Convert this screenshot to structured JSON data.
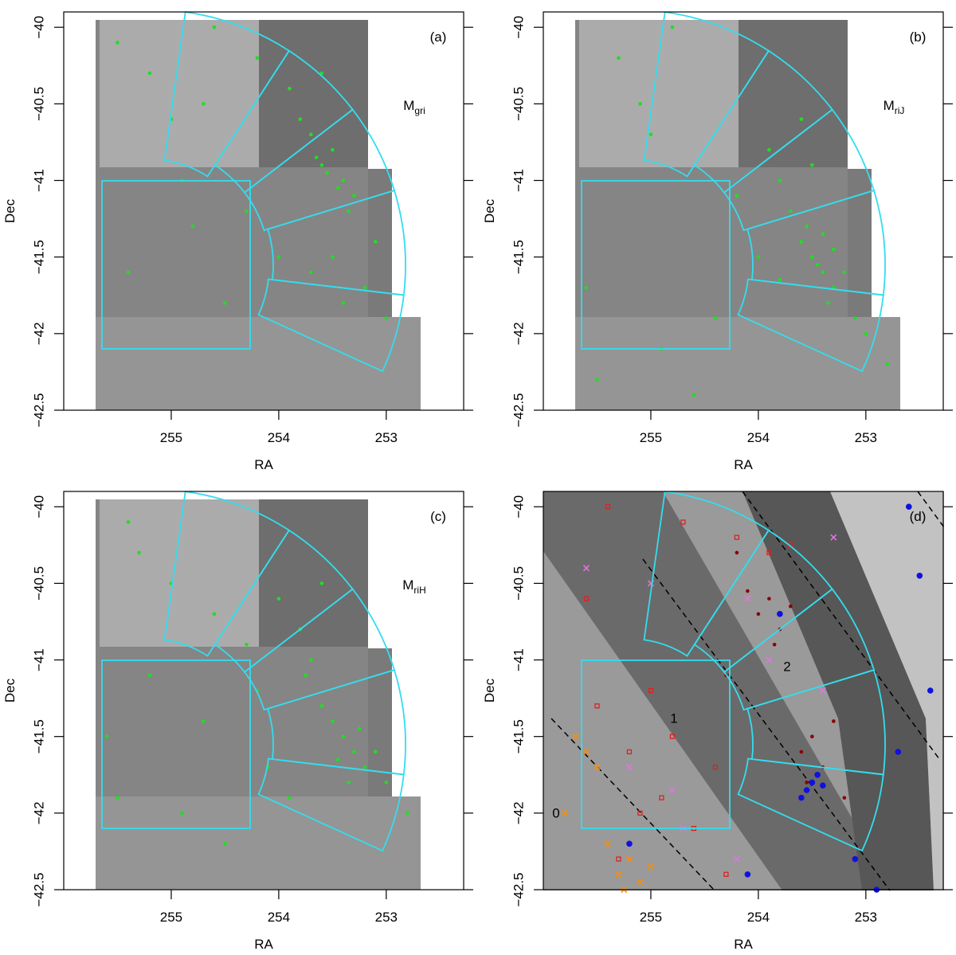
{
  "chart_data": [
    {
      "type": "scatter",
      "panel_label": "(a)",
      "annotation": {
        "text": "M",
        "subscript": "gri"
      },
      "x_label": "RA",
      "y_label": "Dec",
      "xlim": [
        256.0,
        252.28
      ],
      "ylim": [
        -42.5,
        -39.9
      ],
      "xticks": [
        255,
        254,
        253
      ],
      "yticks": [
        {
          "value": -40,
          "label": "−40"
        },
        {
          "value": -40.5,
          "label": "−40.5"
        },
        {
          "value": -41,
          "label": "−41"
        },
        {
          "value": -41.5,
          "label": "−41.5"
        },
        {
          "value": -42,
          "label": "−42"
        },
        {
          "value": -42.5,
          "label": "−42.5"
        }
      ],
      "series": [
        {
          "color": "#22dd22",
          "marker": "dot",
          "x": [
            253.6,
            253.4,
            253.7,
            253.5,
            253.3,
            253.8,
            253.55,
            253.45,
            253.65,
            253.35,
            253.5,
            253.2,
            253.9,
            253.6,
            254.2,
            254.6,
            255.2,
            255.0,
            254.8,
            255.4,
            254.5,
            254.0,
            253.1,
            253.0,
            254.3,
            255.5,
            254.9,
            253.7,
            253.4,
            254.7
          ],
          "values": [
            -40.9,
            -41.0,
            -40.7,
            -40.8,
            -41.1,
            -40.6,
            -40.95,
            -41.05,
            -40.85,
            -41.2,
            -41.5,
            -41.7,
            -40.4,
            -40.3,
            -40.2,
            -40.0,
            -40.3,
            -40.6,
            -41.3,
            -41.6,
            -41.8,
            -41.5,
            -41.4,
            -41.9,
            -41.2,
            -40.1,
            -41.0,
            -41.6,
            -41.8,
            -40.5
          ]
        }
      ]
    },
    {
      "type": "scatter",
      "panel_label": "(b)",
      "annotation": {
        "text": "M",
        "subscript": "riJ"
      },
      "x_label": "RA",
      "y_label": "Dec",
      "xlim": [
        256.0,
        252.28
      ],
      "ylim": [
        -42.5,
        -39.9
      ],
      "xticks": [
        255,
        254,
        253
      ],
      "yticks": [
        {
          "value": -40,
          "label": "−40"
        },
        {
          "value": -40.5,
          "label": "−40.5"
        },
        {
          "value": -41,
          "label": "−41"
        },
        {
          "value": -41.5,
          "label": "−41.5"
        },
        {
          "value": -42,
          "label": "−42"
        },
        {
          "value": -42.5,
          "label": "−42.5"
        }
      ],
      "series": [
        {
          "color": "#22dd22",
          "marker": "dot",
          "x": [
            253.5,
            253.4,
            253.6,
            253.3,
            253.55,
            253.45,
            253.2,
            253.7,
            253.35,
            253.1,
            253.8,
            253.9,
            254.0,
            255.3,
            255.1,
            254.8,
            255.5,
            254.4,
            254.6,
            253.0,
            252.8,
            253.6,
            254.2,
            255.6,
            253.5,
            253.3,
            254.9,
            253.8,
            253.4,
            255.0
          ],
          "values": [
            -41.5,
            -41.6,
            -41.4,
            -41.7,
            -41.3,
            -41.55,
            -41.6,
            -41.2,
            -41.8,
            -41.9,
            -41.0,
            -40.8,
            -41.5,
            -40.2,
            -40.5,
            -40.0,
            -42.3,
            -41.9,
            -42.4,
            -42.0,
            -42.2,
            -40.6,
            -41.1,
            -41.7,
            -40.9,
            -41.45,
            -42.1,
            -41.65,
            -41.35,
            -40.7
          ]
        }
      ]
    },
    {
      "type": "scatter",
      "panel_label": "(c)",
      "annotation": {
        "text": "M",
        "subscript": "riH"
      },
      "x_label": "RA",
      "y_label": "Dec",
      "xlim": [
        256.0,
        252.28
      ],
      "ylim": [
        -42.5,
        -39.9
      ],
      "xticks": [
        255,
        254,
        253
      ],
      "yticks": [
        {
          "value": -40,
          "label": "−40"
        },
        {
          "value": -40.5,
          "label": "−40.5"
        },
        {
          "value": -41,
          "label": "−41"
        },
        {
          "value": -41.5,
          "label": "−41.5"
        },
        {
          "value": -42,
          "label": "−42"
        },
        {
          "value": -42.5,
          "label": "−42.5"
        }
      ],
      "series": [
        {
          "color": "#22dd22",
          "marker": "dot",
          "x": [
            253.3,
            253.4,
            253.2,
            253.5,
            253.35,
            253.6,
            253.1,
            253.7,
            253.8,
            254.0,
            254.2,
            255.3,
            255.0,
            254.7,
            255.5,
            254.5,
            253.9,
            253.0,
            252.8,
            254.3,
            255.2,
            253.6,
            253.45,
            254.9,
            255.4,
            253.25,
            254.1,
            253.75,
            255.6,
            254.6
          ],
          "values": [
            -41.6,
            -41.5,
            -41.7,
            -41.4,
            -41.8,
            -41.3,
            -41.6,
            -41.0,
            -40.8,
            -40.6,
            -41.2,
            -40.3,
            -40.5,
            -41.4,
            -41.9,
            -42.2,
            -41.9,
            -41.8,
            -42.0,
            -40.9,
            -41.1,
            -40.5,
            -41.65,
            -42.0,
            -40.1,
            -41.45,
            -41.7,
            -41.1,
            -41.5,
            -40.7
          ]
        }
      ]
    },
    {
      "type": "scatter",
      "panel_label": "(d)",
      "x_label": "RA",
      "y_label": "Dec",
      "line_labels": [
        0,
        1,
        2
      ],
      "xlim": [
        256.0,
        252.28
      ],
      "ylim": [
        -42.5,
        -39.9
      ],
      "xticks": [
        255,
        254,
        253
      ],
      "yticks": [
        {
          "value": -40,
          "label": "−40"
        },
        {
          "value": -40.5,
          "label": "−40.5"
        },
        {
          "value": -41,
          "label": "−41"
        },
        {
          "value": -41.5,
          "label": "−41.5"
        },
        {
          "value": -42,
          "label": "−42"
        },
        {
          "value": -42.5,
          "label": "−42.5"
        }
      ],
      "series": [
        {
          "color": "#e02020",
          "marker": "square",
          "x": [
            255.5,
            255.2,
            254.9,
            254.6,
            255.3,
            254.4,
            255.0,
            254.7,
            255.6,
            254.3,
            253.9,
            254.2,
            255.4,
            254.8,
            255.1,
            253.7
          ],
          "values": [
            -41.3,
            -41.6,
            -41.9,
            -42.1,
            -42.3,
            -41.7,
            -41.2,
            -40.1,
            -40.6,
            -42.4,
            -40.3,
            -40.2,
            -40.0,
            -41.5,
            -42.0,
            -40.25
          ]
        },
        {
          "color": "#8b0000",
          "marker": "dot",
          "x": [
            253.9,
            254.0,
            253.8,
            253.7,
            254.1,
            253.5,
            253.6,
            253.4,
            253.3,
            254.3,
            253.2,
            253.55,
            254.2,
            253.85
          ],
          "values": [
            -40.6,
            -40.7,
            -40.8,
            -40.65,
            -40.55,
            -41.5,
            -41.6,
            -41.7,
            -41.4,
            -41.1,
            -41.9,
            -41.8,
            -40.3,
            -40.9
          ]
        },
        {
          "color": "#1010e0",
          "marker": "big-dot",
          "x": [
            253.5,
            253.55,
            253.45,
            253.6,
            253.4,
            252.6,
            252.5,
            252.4,
            253.8,
            254.1,
            252.7,
            253.1,
            255.2,
            252.9
          ],
          "values": [
            -41.8,
            -41.85,
            -41.75,
            -41.9,
            -41.82,
            -40.0,
            -40.45,
            -41.2,
            -40.7,
            -42.4,
            -41.6,
            -42.3,
            -42.2,
            -42.5
          ]
        },
        {
          "color": "#ff8c00",
          "marker": "cross",
          "x": [
            255.2,
            255.3,
            255.1,
            255.4,
            255.5,
            255.0,
            255.7,
            255.8,
            255.6,
            255.25
          ],
          "values": [
            -42.3,
            -42.4,
            -42.45,
            -42.2,
            -41.7,
            -42.35,
            -41.5,
            -42.0,
            -41.6,
            -42.5
          ]
        },
        {
          "color": "#dd77dd",
          "marker": "cross",
          "x": [
            255.6,
            255.0,
            254.8,
            254.7,
            253.4,
            254.1,
            253.3,
            254.2,
            255.2,
            253.9
          ],
          "values": [
            -40.4,
            -40.5,
            -41.85,
            -42.1,
            -41.2,
            -40.6,
            -40.2,
            -42.3,
            -41.7,
            -41.0
          ]
        }
      ]
    }
  ]
}
